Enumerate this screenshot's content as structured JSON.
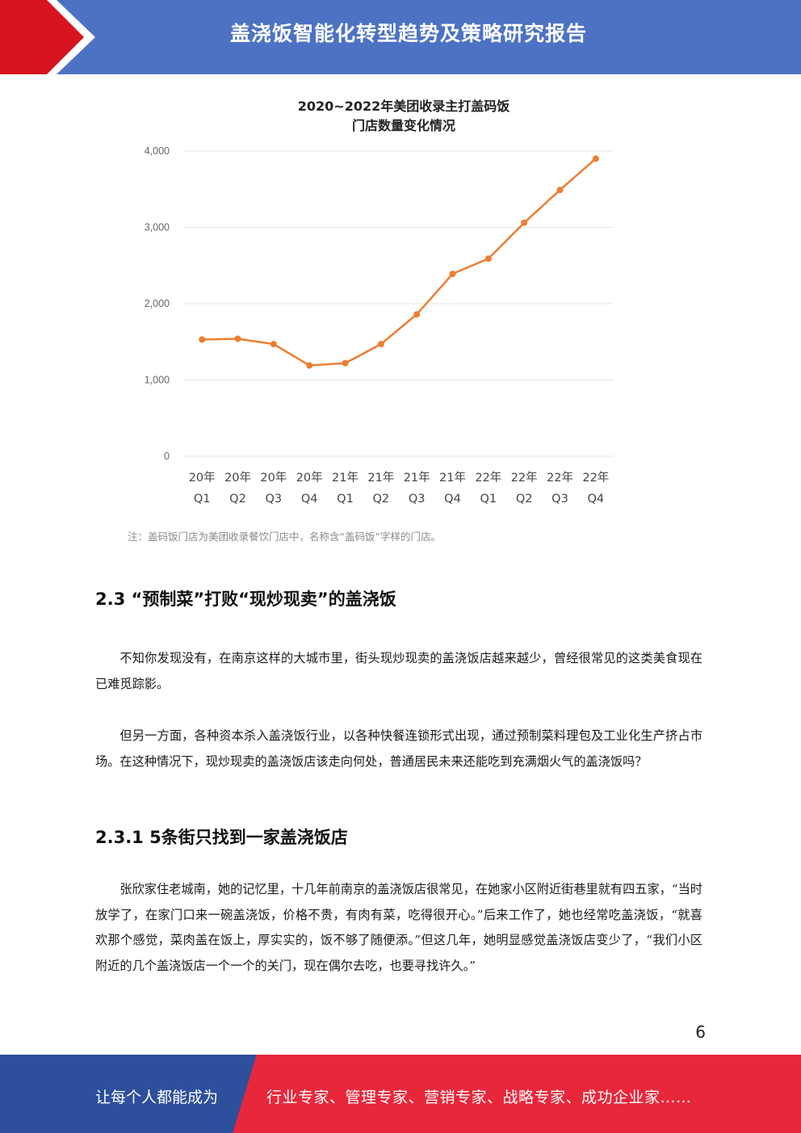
{
  "header": {
    "title": "盖浇饭智能化转型趋势及策略研究报告",
    "colors": {
      "band": "#4d72c4",
      "accent": "#d7141f"
    }
  },
  "chart_data": {
    "type": "line",
    "title_line1": "2020~2022年美团收录主打盖码饭",
    "title_line2": "门店数量变化情况",
    "categories": [
      [
        "20年",
        "Q1"
      ],
      [
        "20年",
        "Q2"
      ],
      [
        "20年",
        "Q3"
      ],
      [
        "20年",
        "Q4"
      ],
      [
        "21年",
        "Q1"
      ],
      [
        "21年",
        "Q2"
      ],
      [
        "21年",
        "Q3"
      ],
      [
        "21年",
        "Q4"
      ],
      [
        "22年",
        "Q1"
      ],
      [
        "22年",
        "Q2"
      ],
      [
        "22年",
        "Q3"
      ],
      [
        "22年",
        "Q4"
      ]
    ],
    "values": [
      1530,
      1540,
      1470,
      1190,
      1220,
      1470,
      1860,
      2390,
      2590,
      3060,
      3490,
      3900
    ],
    "ylim": [
      0,
      4000
    ],
    "yticks": [
      "0",
      "1,000",
      "2,000",
      "3,000",
      "4,000"
    ],
    "grid": true,
    "line_color": "#ed7d31"
  },
  "chart_note": "注：盖码饭门店为美团收录餐饮门店中，名称含“盖码饭”字样的门店。",
  "section_2_3": {
    "heading": "2.3 “预制菜”打败“现炒现卖”的盖浇饭",
    "p1": "不知你发现没有，在南京这样的大城市里，街头现炒现卖的盖浇饭店越来越少，曾经很常见的这类美食现在已难觅踪影。",
    "p2": "但另一方面，各种资本杀入盖浇饭行业，以各种快餐连锁形式出现，通过预制菜料理包及工业化生产挤占市场。在这种情况下，现炒现卖的盖浇饭店该走向何处，普通居民未来还能吃到充满烟火气的盖浇饭吗？"
  },
  "section_2_3_1": {
    "heading": "2.3.1 5条街只找到一家盖浇饭店",
    "p1": "张欣家住老城南，她的记忆里，十几年前南京的盖浇饭店很常见，在她家小区附近街巷里就有四五家，“当时放学了，在家门口来一碗盖浇饭，价格不贵，有肉有菜，吃得很开心。”后来工作了，她也经常吃盖浇饭，“就喜欢那个感觉，菜肉盖在饭上，厚实实的，饭不够了随便添。”但这几年，她明显感觉盖浇饭店变少了，“我们小区附近的几个盖浇饭店一个一个的关门，现在偶尔去吃，也要寻找许久。”"
  },
  "page_number": "6",
  "footer": {
    "left": "让每个人都能成为",
    "right": "行业专家、管理专家、营销专家、战略专家、成功企业家……",
    "colors": {
      "left": "#2e4f9c",
      "right": "#e8273a"
    }
  }
}
